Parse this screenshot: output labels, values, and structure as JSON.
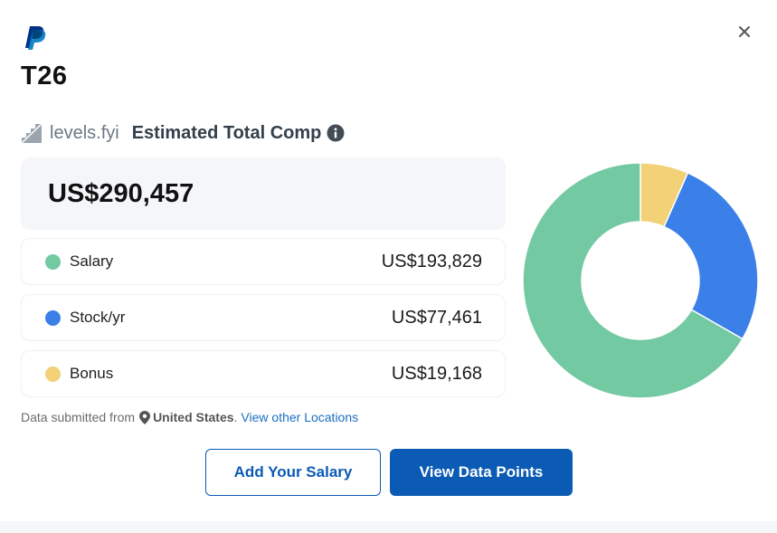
{
  "header": {
    "brand_icon": "paypal-logo",
    "close_icon": "close-icon",
    "title": "T26"
  },
  "source": {
    "brand": "levels.fyi",
    "label": "Estimated Total Comp",
    "info_icon": "info-icon"
  },
  "total": {
    "value": "US$290,457",
    "amount": 290457
  },
  "components": [
    {
      "label": "Salary",
      "value": "US$193,829",
      "amount": 193829,
      "color": "#73c9a1"
    },
    {
      "label": "Stock/yr",
      "value": "US$77,461",
      "amount": 77461,
      "color": "#3b7fe8"
    },
    {
      "label": "Bonus",
      "value": "US$19,168",
      "amount": 19168,
      "color": "#f2d177"
    }
  ],
  "footer": {
    "prefix": "Data submitted from",
    "country": "United States",
    "suffix": ".",
    "link": "View other Locations"
  },
  "buttons": {
    "add_salary": "Add Your Salary",
    "view_points": "View Data Points"
  },
  "colors": {
    "primary": "#0b5bb5",
    "link": "#1a6fc2"
  }
}
